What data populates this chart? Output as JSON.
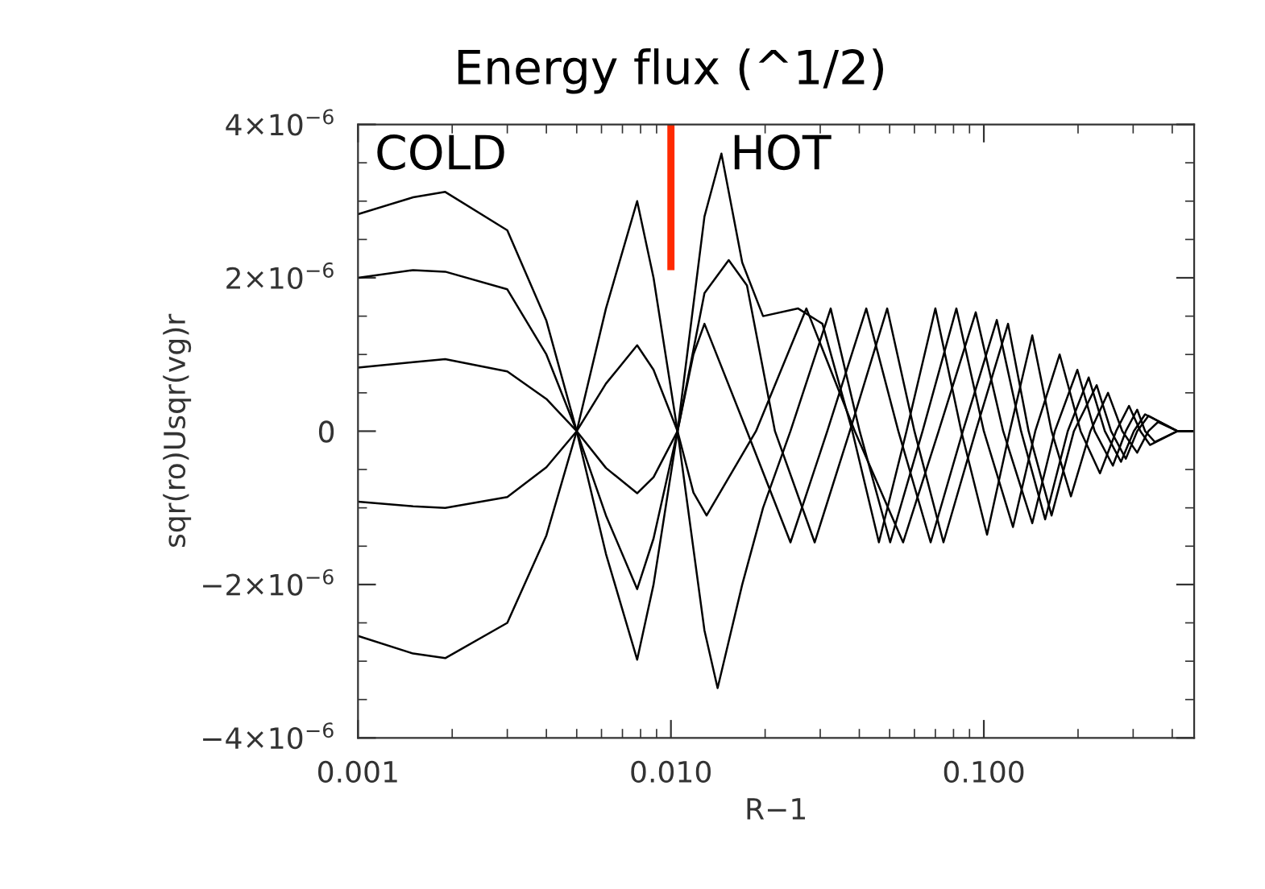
{
  "chart_data": {
    "type": "line",
    "title": "Energy flux (^1/2)",
    "xlabel": "R−1",
    "ylabel": "sqr(ro)Usqr(vg)r",
    "log": "x",
    "grid": false,
    "legend": false,
    "marker": "none",
    "line_style": "solid",
    "xlim": [
      0.001,
      0.47
    ],
    "xticks": [
      {
        "value": 0.001,
        "label": "0.001"
      },
      {
        "value": 0.01,
        "label": "0.010"
      },
      {
        "value": 0.1,
        "label": "0.100"
      }
    ],
    "ylim": [
      -4e-06,
      4e-06
    ],
    "yticks": [
      {
        "value": -4e-06,
        "label": "−4×10$^{−6}$"
      },
      {
        "value": -2e-06,
        "label": "−2×10$^{−6}$"
      },
      0,
      {
        "value": 2e-06,
        "label": "2×10$^{−6}$"
      },
      {
        "value": 4e-06,
        "label": "4×10$^{−6}$"
      }
    ],
    "annotations": [
      "COLD",
      "HOT"
    ],
    "series": [
      {
        "color": "#000000",
        "x": [
          0.001,
          0.0015,
          0.0019,
          0.003,
          0.004,
          0.005,
          0.0062,
          0.0078,
          0.0088,
          0.0105,
          0.0128,
          0.0145,
          0.0169,
          0.0197,
          0.0255,
          0.0305,
          0.038,
          0.0462,
          0.0566,
          0.07,
          0.0847,
          0.1024,
          0.121,
          0.1428,
          0.1646,
          0.1898,
          0.219,
          0.2494,
          0.277,
          0.309,
          0.3356,
          0.3604,
          0.4156,
          0.47
        ],
        "values": [
          2.83e-06,
          3.05e-06,
          3.12e-06,
          2.62e-06,
          1.44e-06,
          0,
          -1.6e-06,
          -2.98e-06,
          -2e-06,
          0,
          2.8e-06,
          3.62e-06,
          2.2e-06,
          1.5e-06,
          1.6e-06,
          1.4e-06,
          0,
          -1.45e-06,
          0,
          1.6e-06,
          0,
          -1.35e-06,
          0,
          1.25e-06,
          0,
          -8.5e-07,
          0,
          5e-07,
          0,
          -2.8e-07,
          0,
          1.2e-07,
          0,
          0
        ]
      },
      {
        "color": "#000000",
        "x": [
          0.001,
          0.0015,
          0.0019,
          0.003,
          0.004,
          0.005,
          0.0062,
          0.0078,
          0.0088,
          0.0105,
          0.0128,
          0.0153,
          0.0175,
          0.0215,
          0.0288,
          0.0373,
          0.0491,
          0.06,
          0.0743,
          0.0942,
          0.1195,
          0.139,
          0.1646,
          0.194,
          0.2294,
          0.255,
          0.2842,
          0.309,
          0.3356,
          0.4156,
          0.47
        ],
        "values": [
          2e-06,
          2.1e-06,
          2.08e-06,
          1.85e-06,
          1e-06,
          0,
          -1.1e-06,
          -2.06e-06,
          -1.4e-06,
          0,
          1.8e-06,
          2.23e-06,
          1.9e-06,
          0,
          -1.45e-06,
          0,
          1.6e-06,
          0,
          -1.45e-06,
          0,
          1.4e-06,
          0,
          -1.1e-06,
          0,
          6e-07,
          0,
          -3.6e-07,
          0,
          2e-07,
          0,
          0
        ]
      },
      {
        "color": "#000000",
        "x": [
          0.001,
          0.0015,
          0.0019,
          0.003,
          0.004,
          0.005,
          0.0062,
          0.0078,
          0.0088,
          0.0105,
          0.0118,
          0.0128,
          0.0175,
          0.0241,
          0.0316,
          0.0421,
          0.0533,
          0.0676,
          0.0857,
          0.11,
          0.1315,
          0.157,
          0.1854,
          0.2163,
          0.2436,
          0.2743,
          0.3015,
          0.3276,
          0.4156,
          0.47
        ],
        "values": [
          8.3e-07,
          9e-07,
          9.4e-07,
          7.8e-07,
          4.2e-07,
          0,
          -4.8e-07,
          -8.1e-07,
          -6e-07,
          0,
          1e-06,
          1.4e-06,
          0,
          -1.45e-06,
          0,
          1.6e-06,
          0,
          -1.45e-06,
          0,
          1.45e-06,
          0,
          -1.15e-06,
          0,
          7e-07,
          0,
          -4e-07,
          0,
          2.2e-07,
          0,
          0
        ]
      },
      {
        "color": "#000000",
        "x": [
          0.001,
          0.0015,
          0.0019,
          0.003,
          0.004,
          0.005,
          0.0062,
          0.0078,
          0.0088,
          0.0105,
          0.0118,
          0.013,
          0.0187,
          0.0271,
          0.0387,
          0.0552,
          0.0717,
          0.0942,
          0.1153,
          0.1428,
          0.1686,
          0.199,
          0.226,
          0.2584,
          0.2842,
          0.309,
          0.3276,
          0.3518,
          0.4156,
          0.47
        ],
        "values": [
          -9.2e-07,
          -9.8e-07,
          -1e-06,
          -8.6e-07,
          -4.7e-07,
          0,
          6.2e-07,
          1.12e-06,
          8e-07,
          0,
          -8e-07,
          -1.1e-06,
          0,
          1.6e-06,
          0,
          -1.45e-06,
          0,
          1.55e-06,
          0,
          -1.2e-06,
          0,
          8e-07,
          0,
          -4.5e-07,
          0,
          2.8e-07,
          0,
          -1.4e-07,
          0,
          0
        ]
      },
      {
        "color": "#000000",
        "x": [
          0.001,
          0.0015,
          0.0019,
          0.003,
          0.004,
          0.005,
          0.0062,
          0.0078,
          0.0088,
          0.0105,
          0.0128,
          0.0141,
          0.0169,
          0.0197,
          0.0241,
          0.0324,
          0.0401,
          0.0502,
          0.0637,
          0.0817,
          0.1,
          0.1239,
          0.146,
          0.1747,
          0.2038,
          0.235,
          0.2647,
          0.291,
          0.3165,
          0.3396,
          0.4156,
          0.47
        ],
        "values": [
          -2.67e-06,
          -2.9e-06,
          -2.96e-06,
          -2.5e-06,
          -1.36e-06,
          0,
          1.6e-06,
          3e-06,
          2e-06,
          0,
          -2.6e-06,
          -3.35e-06,
          -2e-06,
          -1e-06,
          0,
          1.6e-06,
          0,
          -1.45e-06,
          0,
          1.6e-06,
          0,
          -1.25e-06,
          0,
          1e-06,
          0,
          -5.5e-07,
          0,
          3.3e-07,
          0,
          -1.8e-07,
          0,
          0
        ]
      },
      {
        "color": "#ff2a00",
        "x": [
          0.01,
          0.01
        ],
        "values": [
          2.1e-06,
          4e-06
        ]
      }
    ]
  }
}
